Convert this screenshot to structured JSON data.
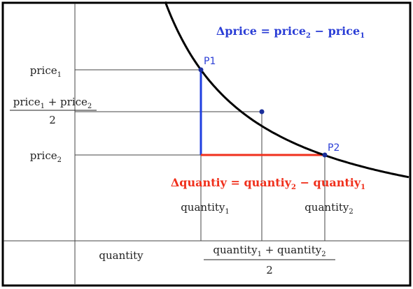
{
  "points": [
    {
      "label": "P1"
    },
    {
      "label": "P2"
    }
  ],
  "delta_price": [
    "Δprice = price",
    "2",
    " − price",
    "1"
  ],
  "delta_quantity": [
    "Δquantiy = quantiy",
    "2",
    " − quantiy",
    "1"
  ],
  "price_1": [
    "price",
    "1"
  ],
  "price_mid": {
    "numerator": [
      "price",
      "1",
      " + price",
      "2"
    ],
    "denominator": "2"
  },
  "price_2": [
    "price",
    "2"
  ],
  "quantity_1": [
    "quantity",
    "1"
  ],
  "quantity_2": [
    "quantity",
    "2"
  ],
  "quantity_mid": {
    "numerator": [
      "quantity",
      "1",
      " + quantity",
      "2"
    ],
    "denominator": "2"
  },
  "axis_label": "quantity"
}
